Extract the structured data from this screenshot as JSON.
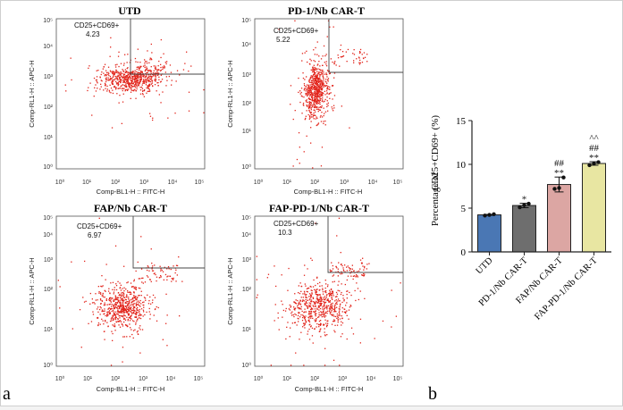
{
  "panel_letters": {
    "a": "a",
    "b": "b"
  },
  "chart_data": [
    {
      "type": "scatter",
      "title": "UTD",
      "xlabel": "Comp-BL1-H :: FITC-H",
      "ylabel": "Comp-RL1-H :: APC-H",
      "xscale": "log",
      "yscale": "log",
      "xlim": [
        1,
        100000
      ],
      "ylim": [
        1,
        100000
      ],
      "x_ticks": [
        "10⁰",
        "10¹",
        "10²",
        "10³",
        "10⁴",
        "10⁵"
      ],
      "y_ticks": [
        "10⁰",
        "10¹",
        "10²",
        "10³",
        "10⁴",
        "10⁵"
      ],
      "gate": {
        "label": "CD25+CD69+",
        "percent": "4.23",
        "x_min": 500,
        "y_min": 1500
      },
      "population": {
        "center_log": [
          2.5,
          3.0
        ],
        "spread_log": [
          0.55,
          0.22
        ]
      }
    },
    {
      "type": "scatter",
      "title": "PD-1/Nb CAR-T",
      "xlabel": "Comp-BL1-H :: FITC-H",
      "ylabel": "Comp-RL1-H :: APC-H",
      "xscale": "log",
      "yscale": "log",
      "xlim": [
        1,
        100000
      ],
      "ylim": [
        1,
        100000
      ],
      "x_ticks": [
        "10⁰",
        "10¹",
        "10²",
        "10³",
        "10⁴",
        "10⁵"
      ],
      "y_ticks": [
        "10⁰",
        "10¹",
        "10²",
        "10³",
        "10⁴",
        "10⁵"
      ],
      "gate": {
        "label": "CD25+CD69+",
        "percent": "5.22",
        "x_min": 300,
        "y_min": 2500
      },
      "population": {
        "center_log": [
          2.05,
          2.65
        ],
        "spread_log": [
          0.22,
          0.45
        ]
      }
    },
    {
      "type": "scatter",
      "title": "FAP/Nb CAR-T",
      "xlabel": "Comp-BL1-H :: FITC-H",
      "ylabel": "Comp-RL1-H :: APC-H",
      "xscale": "log",
      "yscale": "log",
      "xlim": [
        1,
        100000
      ],
      "ylim": [
        1,
        100000
      ],
      "x_ticks": [
        "10⁰",
        "10¹",
        "10²",
        "10³",
        "10⁴",
        "10⁵"
      ],
      "y_ticks": [
        "10⁰",
        "10¹",
        "10²",
        "10³",
        "10⁴",
        "10⁵"
      ],
      "gate": {
        "label": "CD25+CD69+",
        "percent": "6.97",
        "x_min": 800,
        "y_min": 600
      },
      "population": {
        "center_log": [
          2.2,
          2.0
        ],
        "spread_log": [
          0.45,
          0.35
        ]
      }
    },
    {
      "type": "scatter",
      "title": "FAP-PD-1/Nb CAR-T",
      "xlabel": "Comp-BL1-H :: FITC-H",
      "ylabel": "Comp-RL1-H :: APC-H",
      "xscale": "log",
      "yscale": "log",
      "xlim": [
        1,
        100000
      ],
      "ylim": [
        1,
        100000
      ],
      "x_ticks": [
        "10⁰",
        "10¹",
        "10²",
        "10³",
        "10⁴",
        "10⁵"
      ],
      "y_ticks": [
        "10⁰",
        "10¹",
        "10²",
        "10³",
        "10⁴",
        "10⁵"
      ],
      "gate": {
        "label": "CD25+CD69+",
        "percent": "10.3",
        "x_min": 350,
        "y_min": 800
      },
      "population": {
        "center_log": [
          2.15,
          2.0
        ],
        "spread_log": [
          0.5,
          0.4
        ]
      }
    },
    {
      "type": "bar",
      "categories": [
        "UTD",
        "PD-1/Nb CAR-T",
        "FAP/Nb CAR-T",
        "FAP-PD-1/Nb CAR-T"
      ],
      "values": [
        4.23,
        5.3,
        7.7,
        10.1
      ],
      "errors": [
        0.05,
        0.25,
        0.85,
        0.2
      ],
      "points": [
        [
          4.15,
          4.23,
          4.3
        ],
        [
          5.1,
          5.35,
          5.5
        ],
        [
          7.2,
          7.3,
          8.5
        ],
        [
          9.9,
          10.1,
          10.25
        ]
      ],
      "colors": [
        "#4a77b4",
        "#6e6e6e",
        "#dca6a3",
        "#e8e6a2"
      ],
      "significance": [
        [
          "",
          ""
        ],
        [
          "*",
          ""
        ],
        [
          "**",
          "##"
        ],
        [
          "**",
          "##",
          "^^"
        ]
      ],
      "title": "",
      "xlabel": "",
      "ylabel_prefix": "Percentage of",
      "ylabel": "CD25+CD69+ (%)",
      "ylim": [
        0,
        15
      ],
      "y_ticks": [
        0,
        5,
        10,
        15
      ]
    }
  ]
}
